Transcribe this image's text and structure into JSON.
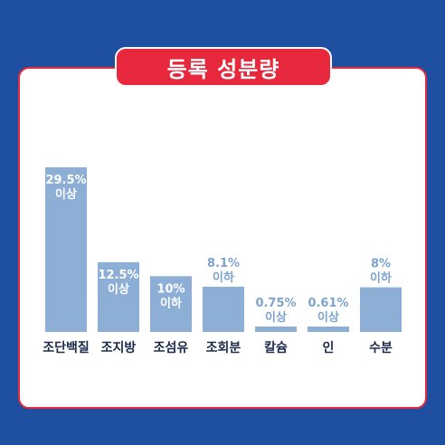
{
  "title": "등록 성분량",
  "colors": {
    "background": "#1f4fa0",
    "accent": "#e8283c",
    "bar": "#8dafd6",
    "label_blue": "#7da3cf"
  },
  "chart_data": {
    "type": "bar",
    "title": "등록 성분량",
    "unit": "%",
    "ylim": [
      0,
      30
    ],
    "categories": [
      "조단백질",
      "조지방",
      "조섬유",
      "조회분",
      "칼슘",
      "인",
      "수분"
    ],
    "values": [
      29.5,
      12.5,
      10,
      8.1,
      0.75,
      0.61,
      8
    ],
    "value_labels": [
      "29.5%",
      "12.5%",
      "10%",
      "8.1%",
      "0.75%",
      "0.61%",
      "8%"
    ],
    "qualifiers": [
      "이상",
      "이상",
      "이하",
      "이하",
      "이상",
      "이상",
      "이하"
    ]
  }
}
